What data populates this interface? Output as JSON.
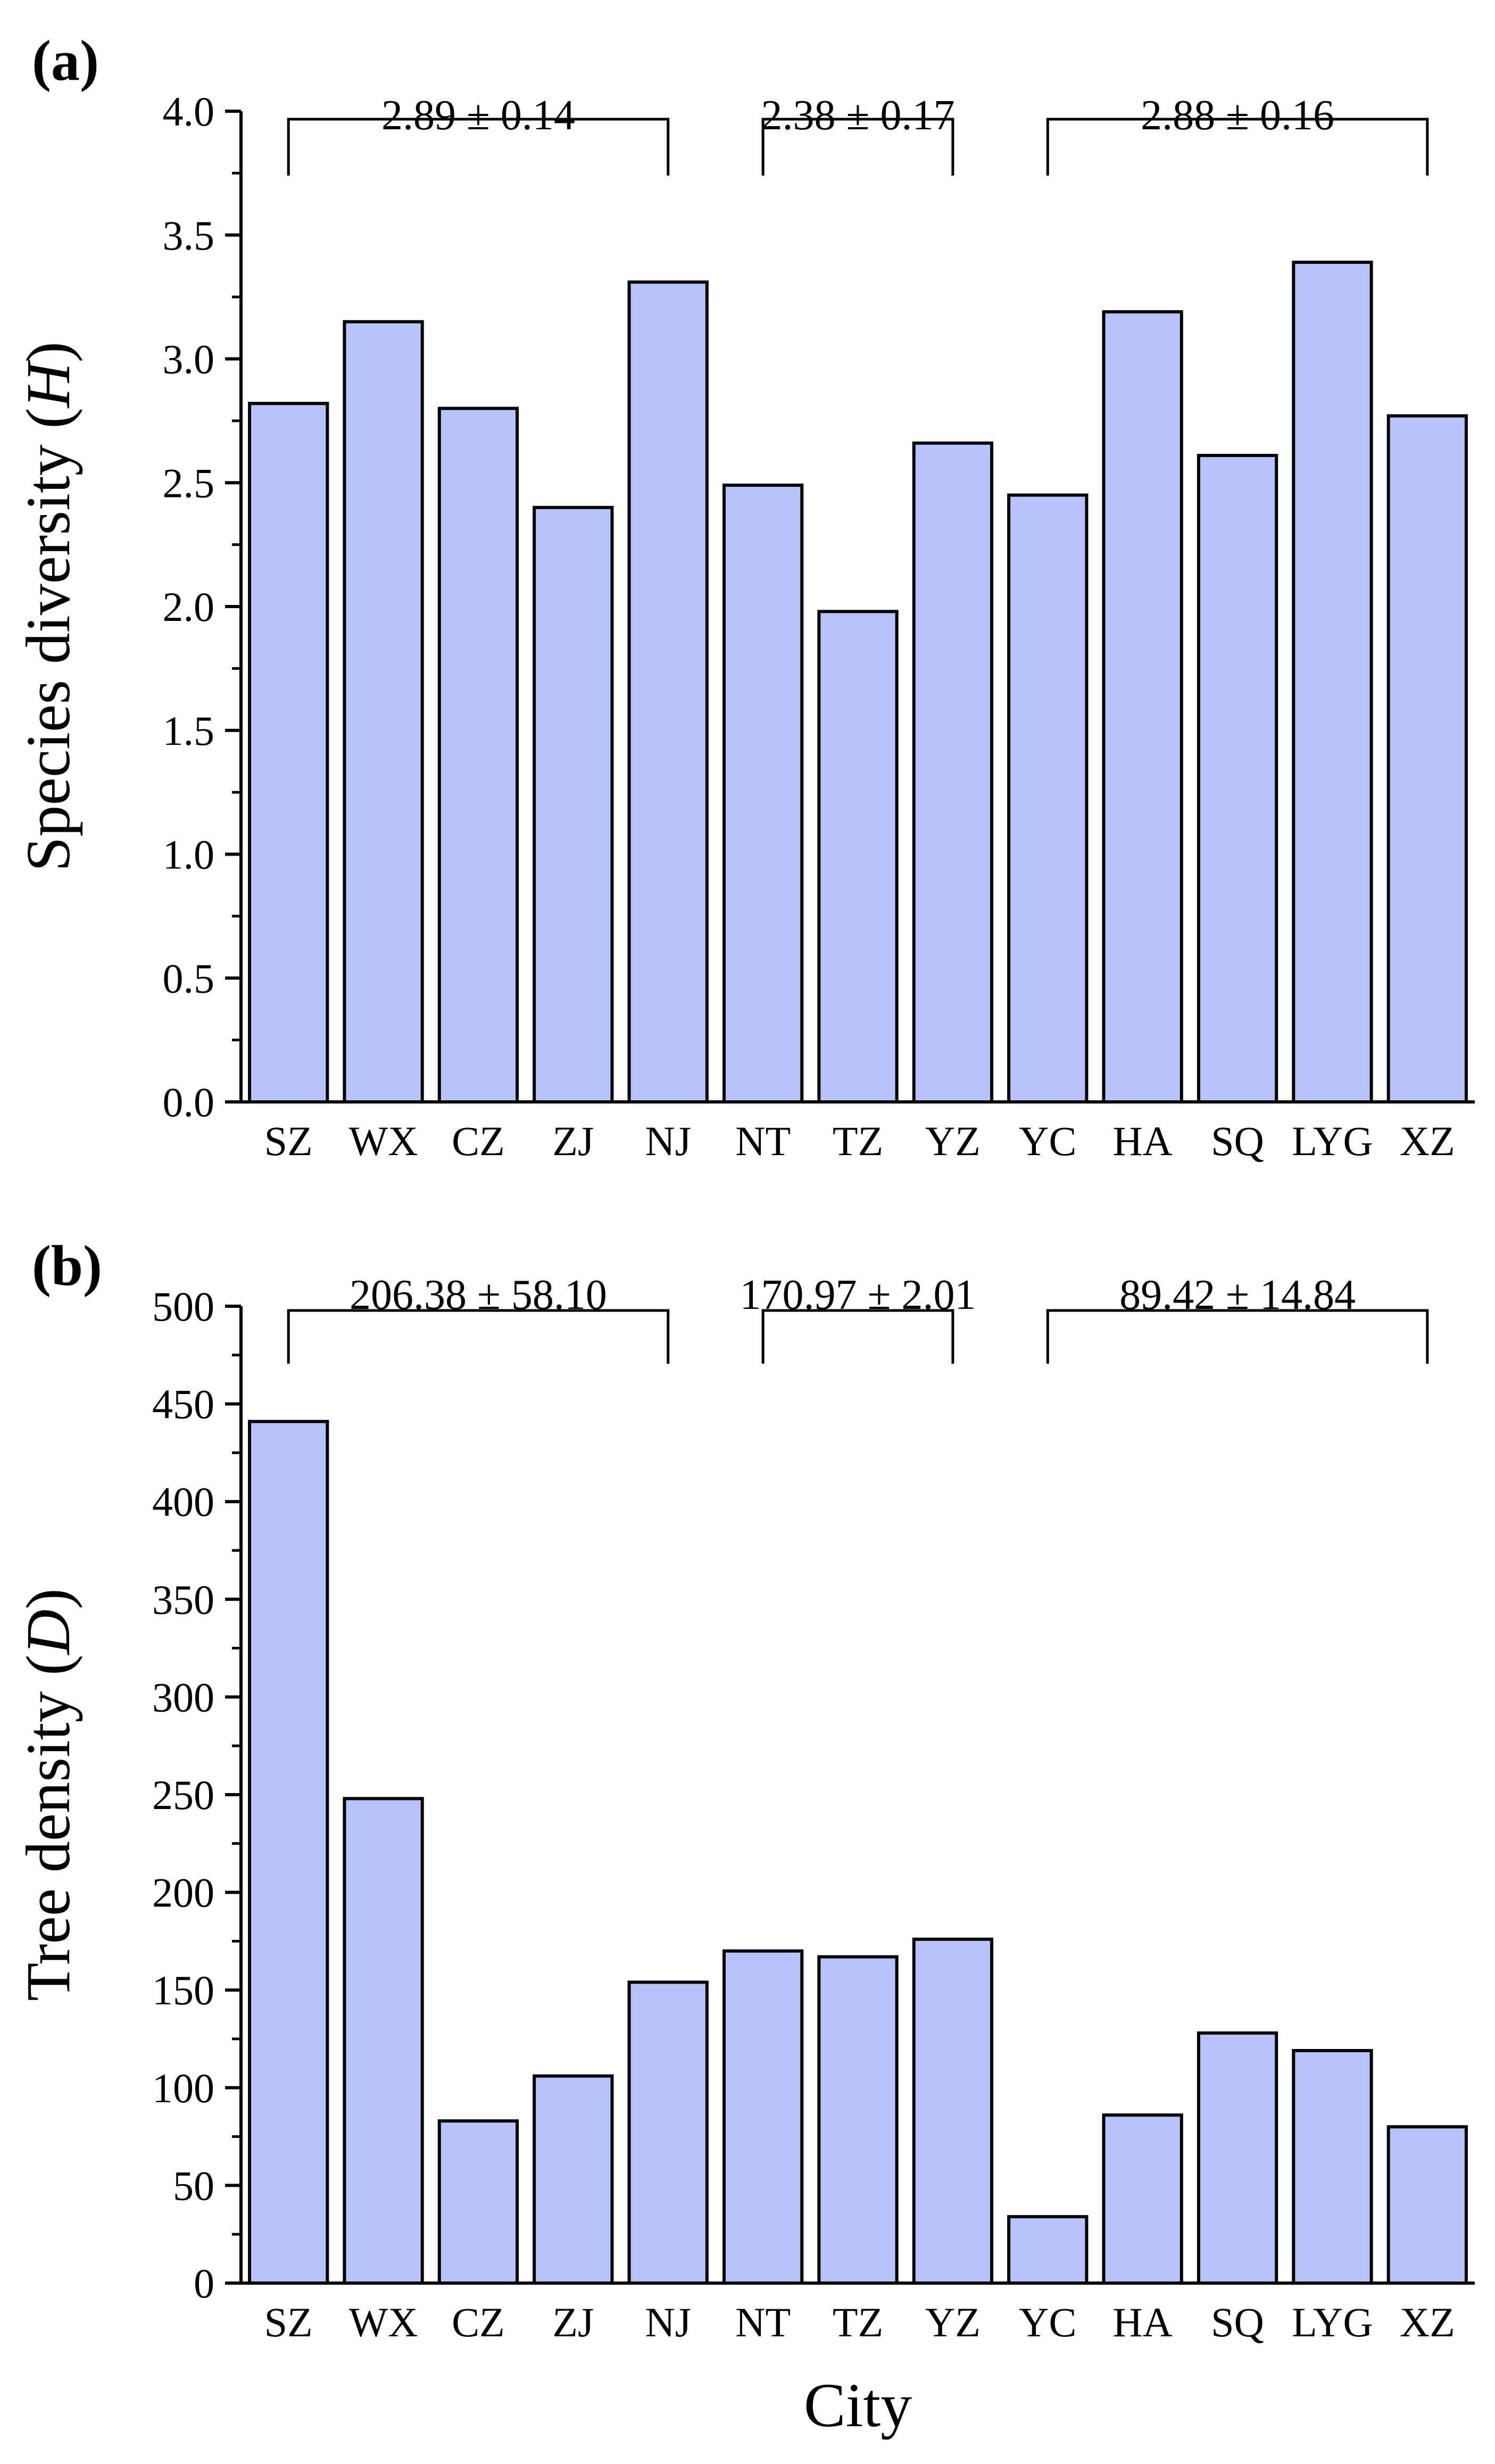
{
  "chart_data": [
    {
      "type": "bar",
      "panel_label": "(a)",
      "categories": [
        "SZ",
        "WX",
        "CZ",
        "ZJ",
        "NJ",
        "NT",
        "TZ",
        "YZ",
        "YC",
        "HA",
        "SQ",
        "LYG",
        "XZ"
      ],
      "values": [
        2.82,
        3.15,
        2.8,
        2.4,
        3.31,
        2.49,
        1.98,
        2.66,
        2.45,
        3.19,
        2.61,
        3.39,
        2.77
      ],
      "ylabel_main": "Species diversity (",
      "ylabel_var": "H",
      "ylabel_end": ")",
      "xlabel": "",
      "ylim": [
        0,
        4.0
      ],
      "yticks": [
        "0.0",
        "0.5",
        "1.0",
        "1.5",
        "2.0",
        "2.5",
        "3.0",
        "3.5",
        "4.0"
      ],
      "color": "#b7c3fb",
      "groups": [
        {
          "label": "2.89 ± 0.14",
          "start": 0,
          "end": 4
        },
        {
          "label": "2.38 ± 0.17",
          "start": 5,
          "end": 7
        },
        {
          "label": "2.88 ± 0.16",
          "start": 8,
          "end": 12
        }
      ]
    },
    {
      "type": "bar",
      "panel_label": "(b)",
      "categories": [
        "SZ",
        "WX",
        "CZ",
        "ZJ",
        "NJ",
        "NT",
        "TZ",
        "YZ",
        "YC",
        "HA",
        "SQ",
        "LYG",
        "XZ"
      ],
      "values": [
        441,
        248,
        83,
        106,
        154,
        170,
        167,
        176,
        34,
        86,
        128,
        119,
        80
      ],
      "ylabel_main": "Tree density (",
      "ylabel_var": "D",
      "ylabel_end": ")",
      "xlabel": "City",
      "ylim": [
        0,
        500
      ],
      "yticks": [
        "0",
        "50",
        "100",
        "150",
        "200",
        "250",
        "300",
        "350",
        "400",
        "450",
        "500"
      ],
      "color": "#b7c3fb",
      "groups": [
        {
          "label": "206.38 ± 58.10",
          "start": 0,
          "end": 4
        },
        {
          "label": "170.97 ± 2.01",
          "start": 5,
          "end": 7
        },
        {
          "label": "89.42 ± 14.84",
          "start": 8,
          "end": 12
        }
      ]
    }
  ]
}
